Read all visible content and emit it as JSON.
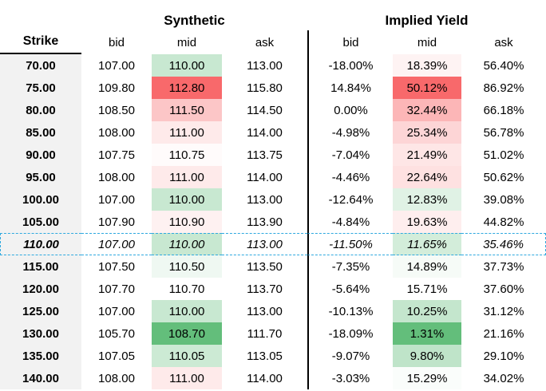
{
  "sheet": {
    "groups": [
      {
        "label": "Synthetic"
      },
      {
        "label": "Implied Yield"
      }
    ],
    "strike_header": "Strike",
    "sub_headers": [
      "bid",
      "mid",
      "ask"
    ],
    "rows": [
      {
        "strike": "70.00",
        "syn": [
          "107.00",
          "110.00",
          "113.00"
        ],
        "iy": [
          "-18.00%",
          "18.39%",
          "56.40%"
        ],
        "highlight": false
      },
      {
        "strike": "75.00",
        "syn": [
          "109.80",
          "112.80",
          "115.80"
        ],
        "iy": [
          "14.84%",
          "50.12%",
          "86.92%"
        ],
        "highlight": false
      },
      {
        "strike": "80.00",
        "syn": [
          "108.50",
          "111.50",
          "114.50"
        ],
        "iy": [
          "0.00%",
          "32.44%",
          "66.18%"
        ],
        "highlight": false
      },
      {
        "strike": "85.00",
        "syn": [
          "108.00",
          "111.00",
          "114.00"
        ],
        "iy": [
          "-4.98%",
          "25.34%",
          "56.78%"
        ],
        "highlight": false
      },
      {
        "strike": "90.00",
        "syn": [
          "107.75",
          "110.75",
          "113.75"
        ],
        "iy": [
          "-7.04%",
          "21.49%",
          "51.02%"
        ],
        "highlight": false
      },
      {
        "strike": "95.00",
        "syn": [
          "108.00",
          "111.00",
          "114.00"
        ],
        "iy": [
          "-4.46%",
          "22.64%",
          "50.62%"
        ],
        "highlight": false
      },
      {
        "strike": "100.00",
        "syn": [
          "107.00",
          "110.00",
          "113.00"
        ],
        "iy": [
          "-12.64%",
          "12.83%",
          "39.08%"
        ],
        "highlight": false
      },
      {
        "strike": "105.00",
        "syn": [
          "107.90",
          "110.90",
          "113.90"
        ],
        "iy": [
          "-4.84%",
          "19.63%",
          "44.82%"
        ],
        "highlight": false
      },
      {
        "strike": "110.00",
        "syn": [
          "107.00",
          "110.00",
          "113.00"
        ],
        "iy": [
          "-11.50%",
          "11.65%",
          "35.46%"
        ],
        "highlight": true
      },
      {
        "strike": "115.00",
        "syn": [
          "107.50",
          "110.50",
          "113.50"
        ],
        "iy": [
          "-7.35%",
          "14.89%",
          "37.73%"
        ],
        "highlight": false
      },
      {
        "strike": "120.00",
        "syn": [
          "107.70",
          "110.70",
          "113.70"
        ],
        "iy": [
          "-5.64%",
          "15.71%",
          "37.60%"
        ],
        "highlight": false
      },
      {
        "strike": "125.00",
        "syn": [
          "107.00",
          "110.00",
          "113.00"
        ],
        "iy": [
          "-10.13%",
          "10.25%",
          "31.12%"
        ],
        "highlight": false
      },
      {
        "strike": "130.00",
        "syn": [
          "105.70",
          "108.70",
          "111.70"
        ],
        "iy": [
          "-18.09%",
          "1.31%",
          "21.16%"
        ],
        "highlight": false
      },
      {
        "strike": "135.00",
        "syn": [
          "107.05",
          "110.05",
          "113.05"
        ],
        "iy": [
          "-9.07%",
          "9.80%",
          "29.10%"
        ],
        "highlight": false
      },
      {
        "strike": "140.00",
        "syn": [
          "108.00",
          "111.00",
          "114.00"
        ],
        "iy": [
          "-3.03%",
          "15.29%",
          "34.02%"
        ],
        "highlight": false
      }
    ],
    "conditional_format": {
      "columns": [
        "synthetic.mid",
        "implied_yield.mid"
      ],
      "min_color": "#63BE7B",
      "mid_color": "#FFFFFF",
      "max_color": "#F8696B",
      "midpoint": "median"
    },
    "colors": {
      "strike_column_bg": "#F2F2F2",
      "divider": "#000000",
      "highlight_border": "#2FA9DF",
      "text": "#000000"
    }
  }
}
